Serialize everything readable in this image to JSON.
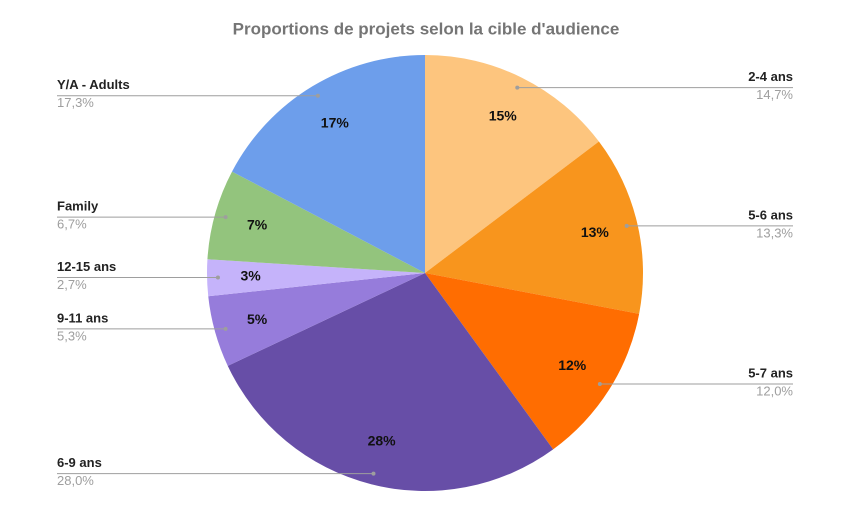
{
  "chart_data": {
    "type": "pie",
    "title": "Proportions de projets selon la cible d'audience",
    "categories": [
      "2-4 ans",
      "5-6 ans",
      "5-7 ans",
      "6-9 ans",
      "9-11 ans",
      "12-15 ans",
      "Family",
      "Y/A - Adults"
    ],
    "values": [
      14.7,
      13.3,
      12.0,
      28.0,
      5.3,
      2.7,
      6.7,
      17.3
    ],
    "value_labels": [
      "14,7%",
      "13,3%",
      "12,0%",
      "28,0%",
      "5,3%",
      "2,7%",
      "6,7%",
      "17,3%"
    ],
    "pct_labels": [
      "15%",
      "13%",
      "12%",
      "28%",
      "5%",
      "3%",
      "7%",
      "17%"
    ],
    "colors": [
      "#fdc57e",
      "#f8951d",
      "#ff6d01",
      "#674ea7",
      "#967cdb",
      "#c5b3fa",
      "#93c47d",
      "#6d9eeb"
    ]
  }
}
